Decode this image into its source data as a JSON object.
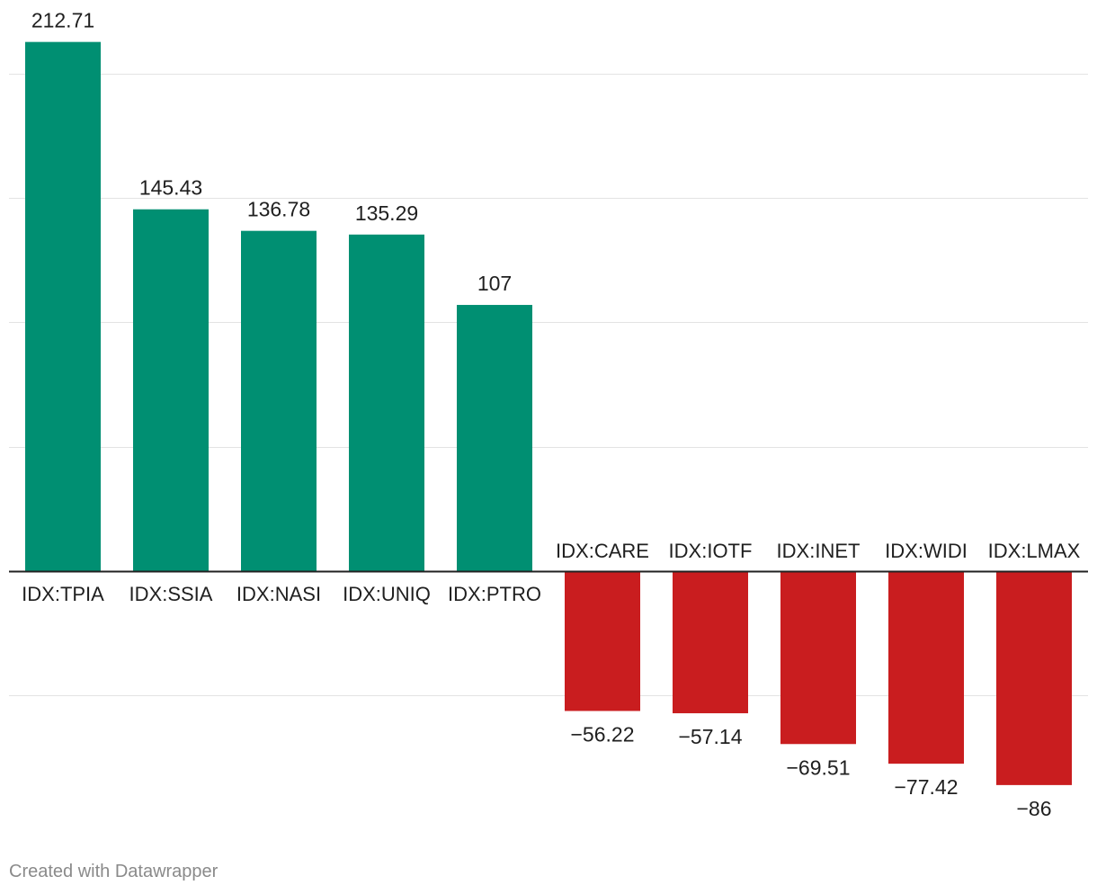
{
  "chart_data": {
    "type": "bar",
    "title": "",
    "xlabel": "",
    "ylabel": "",
    "categories": [
      "IDX:TPIA",
      "IDX:SSIA",
      "IDX:NASI",
      "IDX:UNIQ",
      "IDX:PTRO",
      "IDX:CARE",
      "IDX:IOTF",
      "IDX:INET",
      "IDX:WIDI",
      "IDX:LMAX"
    ],
    "values": [
      212.71,
      145.43,
      136.78,
      135.29,
      107,
      -56.22,
      -57.14,
      -69.51,
      -77.42,
      -86
    ],
    "value_labels": [
      "212.71",
      "145.43",
      "136.78",
      "135.29",
      "107",
      "−56.22",
      "−57.14",
      "−69.51",
      "−77.42",
      "−86"
    ],
    "ylim": [
      -100,
      200
    ],
    "gridlines": [
      200,
      150,
      100,
      50,
      0,
      -50
    ],
    "grid": true,
    "legend": "none"
  },
  "colors": {
    "positive": "#008f72",
    "negative": "#c91d1f",
    "grid": "#e3e3e3",
    "axis": "#222222",
    "text": "#1f1f1f",
    "credit": "#8a8a8a"
  },
  "footer": {
    "credit": "Created with Datawrapper"
  }
}
